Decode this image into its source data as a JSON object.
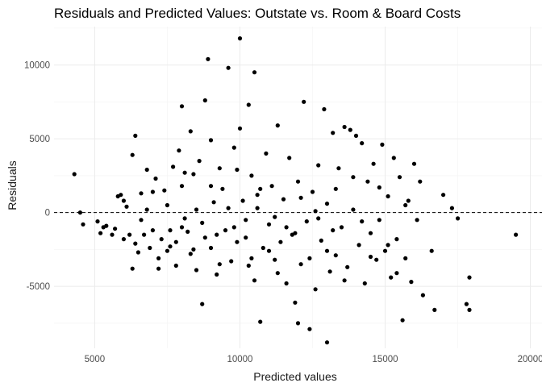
{
  "chart_data": {
    "type": "scatter",
    "title": "Residuals and Predicted Values: Outstate vs. Room & Board Costs",
    "xlabel": "Predicted values",
    "ylabel": "Residuals",
    "xlim": [
      3600,
      20400
    ],
    "ylim": [
      -9200,
      12600
    ],
    "xticks": [
      5000,
      10000,
      15000,
      20000
    ],
    "xtick_labels": [
      "5000",
      "10000",
      "15000",
      "20000"
    ],
    "yticks": [
      -5000,
      0,
      5000,
      10000
    ],
    "ytick_labels": [
      "-5000",
      "0",
      "5000",
      "10000"
    ],
    "grid": true,
    "reference_line": {
      "y": 0,
      "style": "dashed"
    },
    "points_note": "approximately 777 points; values below are a visual estimate read from the plot",
    "points": [
      [
        4300,
        2600
      ],
      [
        4500,
        0
      ],
      [
        4600,
        -800
      ],
      [
        5100,
        -600
      ],
      [
        5200,
        -1400
      ],
      [
        5300,
        -1000
      ],
      [
        5400,
        -900
      ],
      [
        5600,
        -1500
      ],
      [
        5700,
        -1100
      ],
      [
        5800,
        1100
      ],
      [
        5900,
        1200
      ],
      [
        6000,
        -1800
      ],
      [
        6000,
        800
      ],
      [
        6100,
        400
      ],
      [
        6200,
        -1500
      ],
      [
        6300,
        3900
      ],
      [
        6300,
        -3800
      ],
      [
        6400,
        5200
      ],
      [
        6400,
        -2100
      ],
      [
        6500,
        -2700
      ],
      [
        6600,
        1300
      ],
      [
        6600,
        -500
      ],
      [
        6700,
        -1500
      ],
      [
        6800,
        2900
      ],
      [
        6800,
        200
      ],
      [
        6900,
        -2400
      ],
      [
        7000,
        -1200
      ],
      [
        7000,
        1400
      ],
      [
        7100,
        2300
      ],
      [
        7200,
        -3100
      ],
      [
        7300,
        -1800
      ],
      [
        7400,
        1500
      ],
      [
        7500,
        500
      ],
      [
        7500,
        -2600
      ],
      [
        7600,
        -1200
      ],
      [
        7700,
        3100
      ],
      [
        7800,
        -2000
      ],
      [
        7800,
        -3600
      ],
      [
        7900,
        4200
      ],
      [
        8000,
        7200
      ],
      [
        8000,
        1800
      ],
      [
        8100,
        -400
      ],
      [
        8200,
        -1300
      ],
      [
        8300,
        5500
      ],
      [
        8300,
        -2800
      ],
      [
        8400,
        2600
      ],
      [
        8500,
        -3900
      ],
      [
        8600,
        3500
      ],
      [
        8700,
        -6200
      ],
      [
        8800,
        7600
      ],
      [
        8800,
        -1700
      ],
      [
        8900,
        10400
      ],
      [
        9000,
        4900
      ],
      [
        9000,
        -2400
      ],
      [
        9100,
        700
      ],
      [
        9200,
        -4200
      ],
      [
        9300,
        3000
      ],
      [
        9400,
        1600
      ],
      [
        9500,
        -1200
      ],
      [
        9600,
        9800
      ],
      [
        9700,
        -3300
      ],
      [
        9800,
        4400
      ],
      [
        9900,
        -2000
      ],
      [
        10000,
        5700
      ],
      [
        10000,
        11800
      ],
      [
        10100,
        800
      ],
      [
        10200,
        -500
      ],
      [
        10300,
        7300
      ],
      [
        10300,
        -3600
      ],
      [
        10400,
        2500
      ],
      [
        10500,
        9500
      ],
      [
        10500,
        -4600
      ],
      [
        10600,
        1200
      ],
      [
        10700,
        -7400
      ],
      [
        10800,
        -2400
      ],
      [
        10900,
        4000
      ],
      [
        11000,
        -800
      ],
      [
        11100,
        1800
      ],
      [
        11200,
        -3200
      ],
      [
        11300,
        5900
      ],
      [
        11400,
        -2000
      ],
      [
        11500,
        900
      ],
      [
        11600,
        -4800
      ],
      [
        11700,
        3700
      ],
      [
        11800,
        -1500
      ],
      [
        11900,
        -6100
      ],
      [
        12000,
        -7500
      ],
      [
        12000,
        2100
      ],
      [
        12100,
        -3500
      ],
      [
        12200,
        7500
      ],
      [
        12300,
        -600
      ],
      [
        12400,
        -7900
      ],
      [
        12500,
        1400
      ],
      [
        12600,
        -5200
      ],
      [
        12700,
        3200
      ],
      [
        12800,
        -1900
      ],
      [
        12900,
        7000
      ],
      [
        13000,
        -8800
      ],
      [
        13000,
        600
      ],
      [
        13100,
        -4000
      ],
      [
        13200,
        5400
      ],
      [
        13300,
        -2900
      ],
      [
        13400,
        3000
      ],
      [
        13500,
        -1000
      ],
      [
        13600,
        5800
      ],
      [
        13700,
        -3700
      ],
      [
        13800,
        5600
      ],
      [
        13900,
        200
      ],
      [
        14000,
        5200
      ],
      [
        14100,
        -2200
      ],
      [
        14200,
        4700
      ],
      [
        14300,
        -4800
      ],
      [
        14400,
        2100
      ],
      [
        14500,
        -1400
      ],
      [
        14600,
        3300
      ],
      [
        14700,
        -3200
      ],
      [
        14800,
        -500
      ],
      [
        14900,
        4600
      ],
      [
        15000,
        -2600
      ],
      [
        15100,
        1100
      ],
      [
        15200,
        -4400
      ],
      [
        15300,
        3700
      ],
      [
        15400,
        -1800
      ],
      [
        15500,
        2400
      ],
      [
        15600,
        -7300
      ],
      [
        15700,
        -3100
      ],
      [
        15800,
        800
      ],
      [
        15900,
        -4700
      ],
      [
        16000,
        3300
      ],
      [
        16100,
        -500
      ],
      [
        16200,
        2100
      ],
      [
        16300,
        -5600
      ],
      [
        16600,
        -2600
      ],
      [
        16700,
        -6600
      ],
      [
        17000,
        1200
      ],
      [
        17300,
        300
      ],
      [
        17500,
        -400
      ],
      [
        17800,
        -6200
      ],
      [
        17900,
        -4400
      ],
      [
        17900,
        -6600
      ],
      [
        19500,
        -1500
      ],
      [
        7200,
        -3800
      ],
      [
        7600,
        -2300
      ],
      [
        8100,
        2700
      ],
      [
        8400,
        -2500
      ],
      [
        8700,
        -700
      ],
      [
        9000,
        1800
      ],
      [
        9300,
        -3500
      ],
      [
        9600,
        300
      ],
      [
        9900,
        2900
      ],
      [
        10200,
        -1700
      ],
      [
        10400,
        -3100
      ],
      [
        10700,
        1600
      ],
      [
        11000,
        -2600
      ],
      [
        11300,
        -4100
      ],
      [
        11600,
        -1000
      ],
      [
        12100,
        1000
      ],
      [
        12400,
        -3100
      ],
      [
        12700,
        -400
      ],
      [
        13000,
        -2600
      ],
      [
        13300,
        1600
      ],
      [
        13600,
        -4600
      ],
      [
        13900,
        2400
      ],
      [
        14200,
        -600
      ],
      [
        14500,
        -3000
      ],
      [
        14800,
        1700
      ],
      [
        15100,
        -2200
      ],
      [
        15400,
        -4100
      ],
      [
        15700,
        500
      ],
      [
        8000,
        -1000
      ],
      [
        8500,
        200
      ],
      [
        9200,
        -1500
      ],
      [
        9800,
        -1000
      ],
      [
        10600,
        300
      ],
      [
        11200,
        -300
      ],
      [
        11900,
        -1400
      ],
      [
        12600,
        100
      ],
      [
        13200,
        -1200
      ]
    ]
  }
}
